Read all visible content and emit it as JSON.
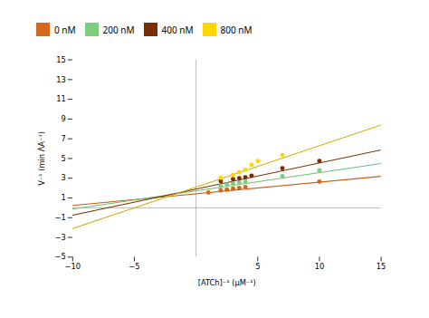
{
  "chart_data": {
    "type": "scatter",
    "xlabel": "[ATCh]⁻¹ (μM⁻¹)",
    "ylabel": "V⁻¹ (min ΛA⁻¹)",
    "series": [
      {
        "name": "0 nM",
        "color": "#D2691E",
        "x": [
          1.0,
          2.0,
          2.5,
          3.0,
          3.5,
          4.0,
          10.0
        ],
        "values": [
          1.55,
          1.75,
          1.85,
          1.95,
          2.0,
          2.1,
          2.65
        ],
        "line": {
          "x": [
            -10,
            15
          ],
          "y": [
            0.24,
            3.19
          ],
          "color": "#CD5C1A"
        }
      },
      {
        "name": "200 nM",
        "color": "#7CCD7C",
        "x": [
          2.0,
          2.5,
          3.0,
          3.5,
          4.0,
          7.0,
          10.0
        ],
        "values": [
          2.2,
          2.35,
          2.45,
          2.55,
          2.65,
          3.2,
          3.8
        ],
        "line": {
          "x": [
            -10,
            15
          ],
          "y": [
            -0.13,
            4.495
          ],
          "color": "#6BBF6B"
        }
      },
      {
        "name": "400 nM",
        "color": "#7B2D00",
        "x": [
          2.0,
          3.0,
          3.5,
          4.0,
          4.5,
          7.0,
          10.0
        ],
        "values": [
          2.7,
          2.9,
          3.0,
          3.1,
          3.25,
          4.0,
          4.75
        ],
        "line": {
          "x": [
            -10,
            15
          ],
          "y": [
            -0.75,
            5.875
          ],
          "color": "#7B2D00"
        }
      },
      {
        "name": "800 nM",
        "color": "#FFD700",
        "x": [
          2.0,
          3.0,
          3.5,
          4.0,
          4.5,
          5.0,
          7.0
        ],
        "values": [
          3.05,
          3.35,
          3.6,
          3.85,
          4.35,
          4.75,
          5.35
        ],
        "line": {
          "x": [
            -10,
            15
          ],
          "y": [
            -2.1,
            8.4
          ],
          "color": "#D4AC00"
        }
      }
    ],
    "xlim": [
      -10,
      15
    ],
    "ylim": [
      -5,
      15
    ],
    "xticks": [
      {
        "value": -10,
        "label": "−10"
      },
      {
        "value": -5,
        "label": "−5"
      },
      5,
      10,
      15
    ],
    "yticks": [
      {
        "value": -5,
        "label": "−5"
      },
      {
        "value": -3,
        "label": "−3"
      },
      {
        "value": -1,
        "label": "−1"
      },
      1,
      3,
      5,
      7,
      9,
      11,
      13,
      15
    ],
    "legend": "top",
    "grid": false
  }
}
